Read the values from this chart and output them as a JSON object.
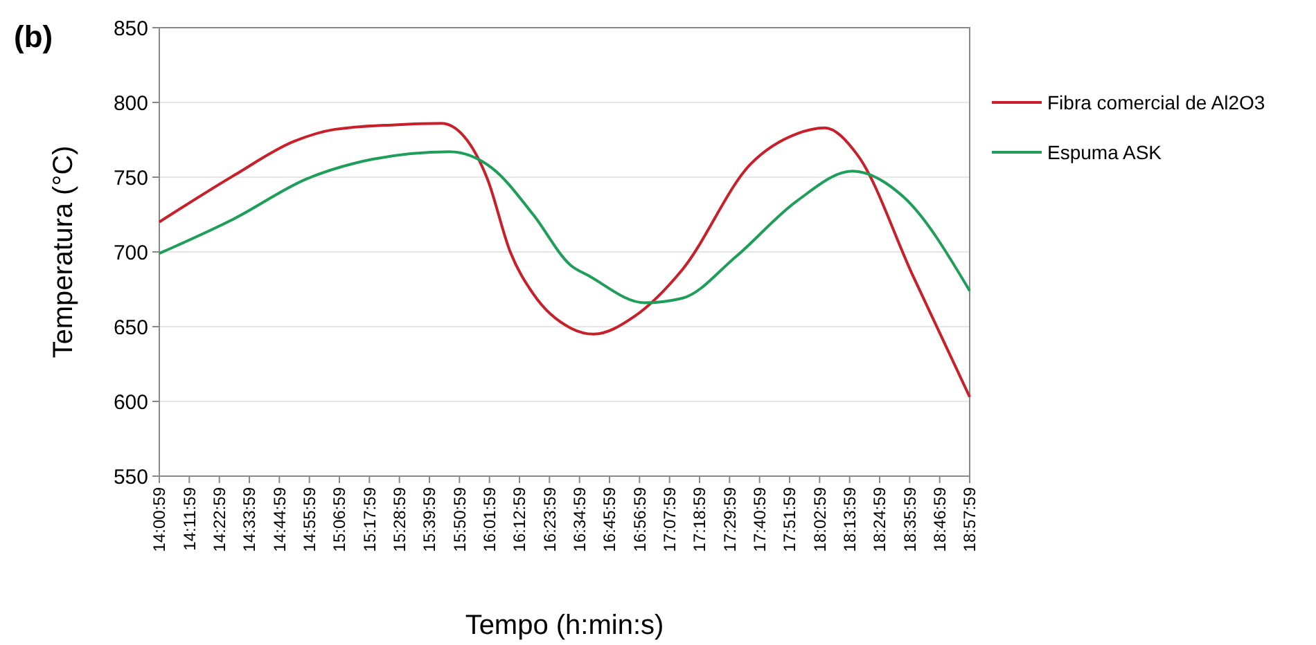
{
  "chart_data": {
    "type": "line",
    "title": "(b)",
    "xlabel": "Tempo  (h:min:s)",
    "ylabel": "Temperatura (°C)",
    "xlim": [
      14.0164,
      18.9664
    ],
    "ylim": [
      550,
      850
    ],
    "yticks": [
      550,
      600,
      650,
      700,
      750,
      800,
      850
    ],
    "xticks": [
      {
        "value": 14.0164,
        "label": "14:00:59"
      },
      {
        "value": 14.1997,
        "label": "14:11:59"
      },
      {
        "value": 14.3831,
        "label": "14:22:59"
      },
      {
        "value": 14.5664,
        "label": "14:33:59"
      },
      {
        "value": 14.7497,
        "label": "14:44:59"
      },
      {
        "value": 14.9331,
        "label": "14:55:59"
      },
      {
        "value": 15.1164,
        "label": "15:06:59"
      },
      {
        "value": 15.2997,
        "label": "15:17:59"
      },
      {
        "value": 15.4831,
        "label": "15:28:59"
      },
      {
        "value": 15.6664,
        "label": "15:39:59"
      },
      {
        "value": 15.8497,
        "label": "15:50:59"
      },
      {
        "value": 16.0331,
        "label": "16:01:59"
      },
      {
        "value": 16.2164,
        "label": "16:12:59"
      },
      {
        "value": 16.3997,
        "label": "16:23:59"
      },
      {
        "value": 16.5831,
        "label": "16:34:59"
      },
      {
        "value": 16.7664,
        "label": "16:45:59"
      },
      {
        "value": 16.9497,
        "label": "16:56:59"
      },
      {
        "value": 17.1331,
        "label": "17:07:59"
      },
      {
        "value": 17.3164,
        "label": "17:18:59"
      },
      {
        "value": 17.4997,
        "label": "17:29:59"
      },
      {
        "value": 17.6831,
        "label": "17:40:59"
      },
      {
        "value": 17.8664,
        "label": "17:51:59"
      },
      {
        "value": 18.0497,
        "label": "18:02:59"
      },
      {
        "value": 18.2331,
        "label": "18:13:59"
      },
      {
        "value": 18.4164,
        "label": "18:24:59"
      },
      {
        "value": 18.5997,
        "label": "18:35:59"
      },
      {
        "value": 18.7831,
        "label": "18:46:59"
      },
      {
        "value": 18.9664,
        "label": "18:57:59"
      }
    ],
    "grid": "y",
    "legend": "right",
    "series": [
      {
        "name": "Fibra comercial de Al2O3",
        "color": "#c8202a",
        "x": [
          14.0164,
          14.47,
          14.84,
          15.09,
          15.45,
          15.74,
          15.88,
          16.02,
          16.16,
          16.3,
          16.53,
          16.67,
          16.92,
          17.21,
          17.63,
          17.91,
          18.08,
          18.28,
          18.62,
          18.9664
        ],
        "values": [
          720,
          751,
          774,
          782,
          785,
          786,
          777,
          749,
          700,
          672,
          649,
          645,
          657,
          688,
          759,
          779,
          783,
          765,
          684,
          603
        ]
      },
      {
        "name": "Espuma ASK",
        "color": "#1f9e5a",
        "x": [
          14.0164,
          14.47,
          14.92,
          15.32,
          15.79,
          16.05,
          16.3,
          16.53,
          16.64,
          16.98,
          17.21,
          17.54,
          17.91,
          18.25,
          18.56,
          18.9664
        ],
        "values": [
          699,
          722,
          749,
          762,
          767,
          756,
          725,
          691,
          684,
          666,
          669,
          697,
          734,
          754,
          737,
          674
        ]
      }
    ]
  }
}
